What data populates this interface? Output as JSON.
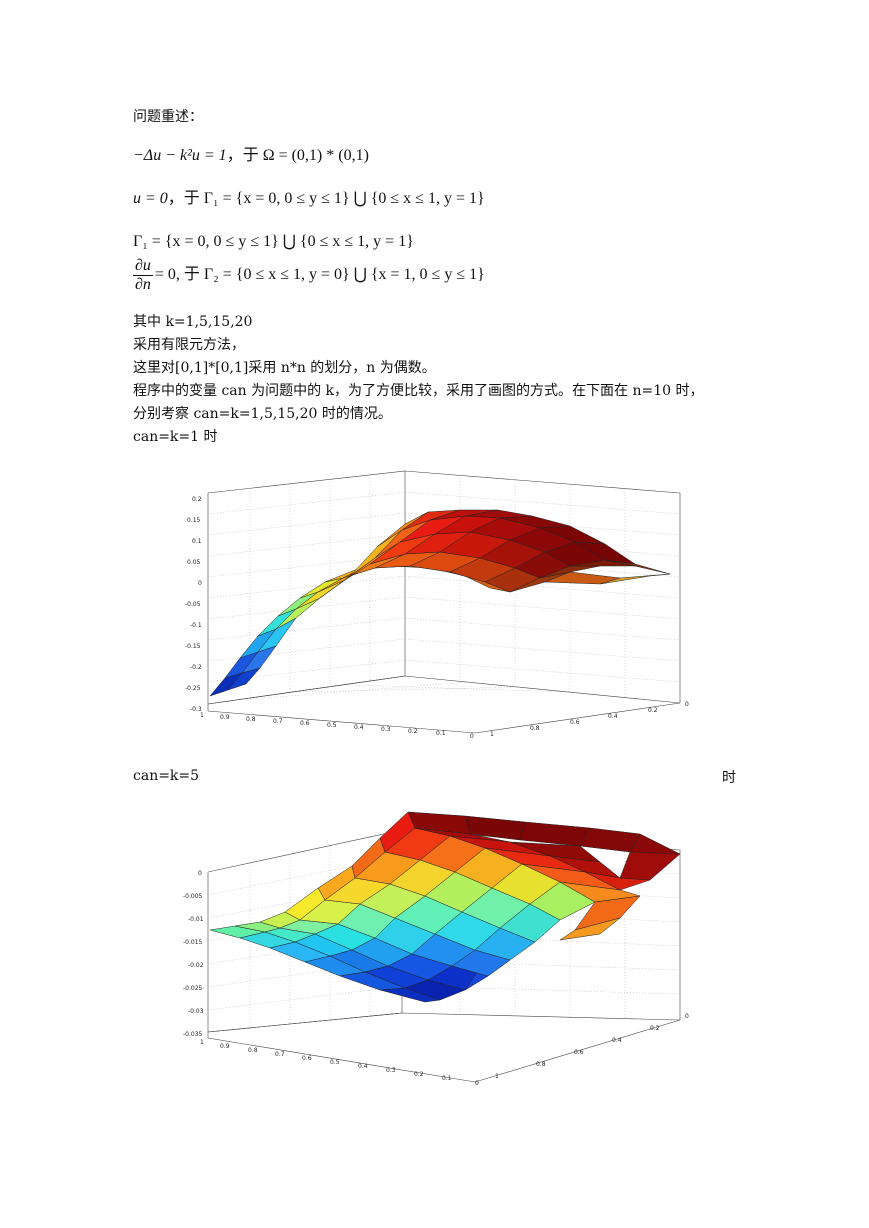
{
  "text": {
    "heading": "问题重述：",
    "where": "其中    k=1,5,15,20",
    "method": "采用有限元方法，",
    "partition": "这里对[0,1]*[0,1]采用 n*n 的划分，n 为偶数。",
    "program_1": "程序中的变量 can 为问题中的 k，为了方便比较，采用了画图的方式。在下面在 n=10 时，",
    "program_2": "分别考察 can=k=1,5,15,20 时的情况。",
    "case1": "can=k=1 时",
    "case2": "can=k=5",
    "case2_time": "时"
  },
  "equations": {
    "eq1_lhs": "−Δu − k²u = 1",
    "eq1_rhs": "，于 Ω = (0,1) * (0,1)",
    "eq2_lhs": "u = 0",
    "eq2_rhs": "，于 Γ₁ = {x = 0, 0 ≤ y ≤ 1} ⋃ {0 ≤ x ≤ 1, y = 1}",
    "eq3": "Γ₁ = {x = 0, 0 ≤ y ≤ 1} ⋃ {0 ≤ x ≤ 1, y = 1}",
    "eq4_num": "∂u",
    "eq4_den": "∂n",
    "eq4_rhs": "= 0, 于 Γ₂ = {0 ≤ x ≤ 1, y = 0} ⋃ {x = 1, 0 ≤ y ≤ 1}"
  },
  "chart_data": [
    {
      "type": "surface",
      "z_ticks": [
        "0.2",
        "0.15",
        "0.1",
        "0.05",
        "0",
        "-0.05",
        "-0.1",
        "-0.15",
        "-0.2",
        "-0.25",
        "-0.3"
      ],
      "x_ticks": [
        "1",
        "0.9",
        "0.8",
        "0.7",
        "0.6",
        "0.5",
        "0.4",
        "0.3",
        "0.2",
        "0.1",
        "0"
      ],
      "y_ticks": [
        "0",
        "0.2",
        "0.4",
        "0.6",
        "0.8",
        "1"
      ],
      "zlim": [
        -0.3,
        0.2
      ],
      "colormap": "jet",
      "grid": true
    },
    {
      "type": "surface",
      "z_ticks": [
        "0",
        "-0.005",
        "-0.01",
        "-0.015",
        "-0.02",
        "-0.025",
        "-0.03",
        "-0.035"
      ],
      "x_ticks": [
        "1",
        "0.9",
        "0.8",
        "0.7",
        "0.6",
        "0.5",
        "0.4",
        "0.3",
        "0.2",
        "0.1",
        "0"
      ],
      "y_ticks": [
        "0",
        "0.2",
        "0.4",
        "0.6",
        "0.8",
        "1"
      ],
      "zlim": [
        -0.035,
        0
      ],
      "colormap": "jet",
      "grid": true
    }
  ]
}
